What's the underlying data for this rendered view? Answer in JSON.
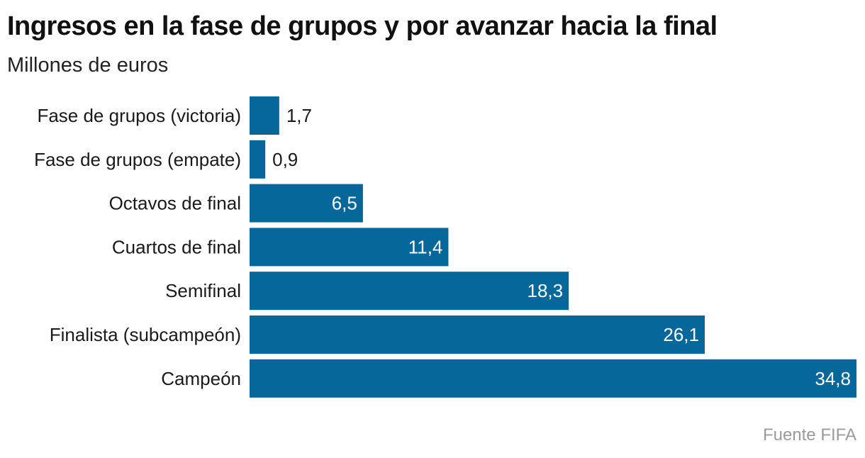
{
  "header": {
    "title": "Ingresos en la fase de grupos y por avanzar hacia la final",
    "subtitle": "Millones de euros"
  },
  "footer": {
    "source": "Fuente FIFA"
  },
  "colors": {
    "bar": "#06679b",
    "label_inside": "#ffffff",
    "label_outside": "#1a1a1a"
  },
  "chart_data": {
    "type": "bar",
    "orientation": "horizontal",
    "title": "Ingresos en la fase de grupos y por avanzar hacia la final",
    "subtitle": "Millones de euros",
    "xlabel": "",
    "ylabel": "",
    "xlim": [
      0,
      34.8
    ],
    "grid": false,
    "categories": [
      "Fase de grupos (victoria)",
      "Fase de grupos (empate)",
      "Octavos de final",
      "Cuartos de final",
      "Semifinal",
      "Finalista (subcampeón)",
      "Campeón"
    ],
    "values": [
      1.7,
      0.9,
      6.5,
      11.4,
      18.3,
      26.1,
      34.8
    ],
    "value_labels": [
      "1,7",
      "0,9",
      "6,5",
      "11,4",
      "18,3",
      "26,1",
      "34,8"
    ],
    "source": "Fuente FIFA"
  }
}
